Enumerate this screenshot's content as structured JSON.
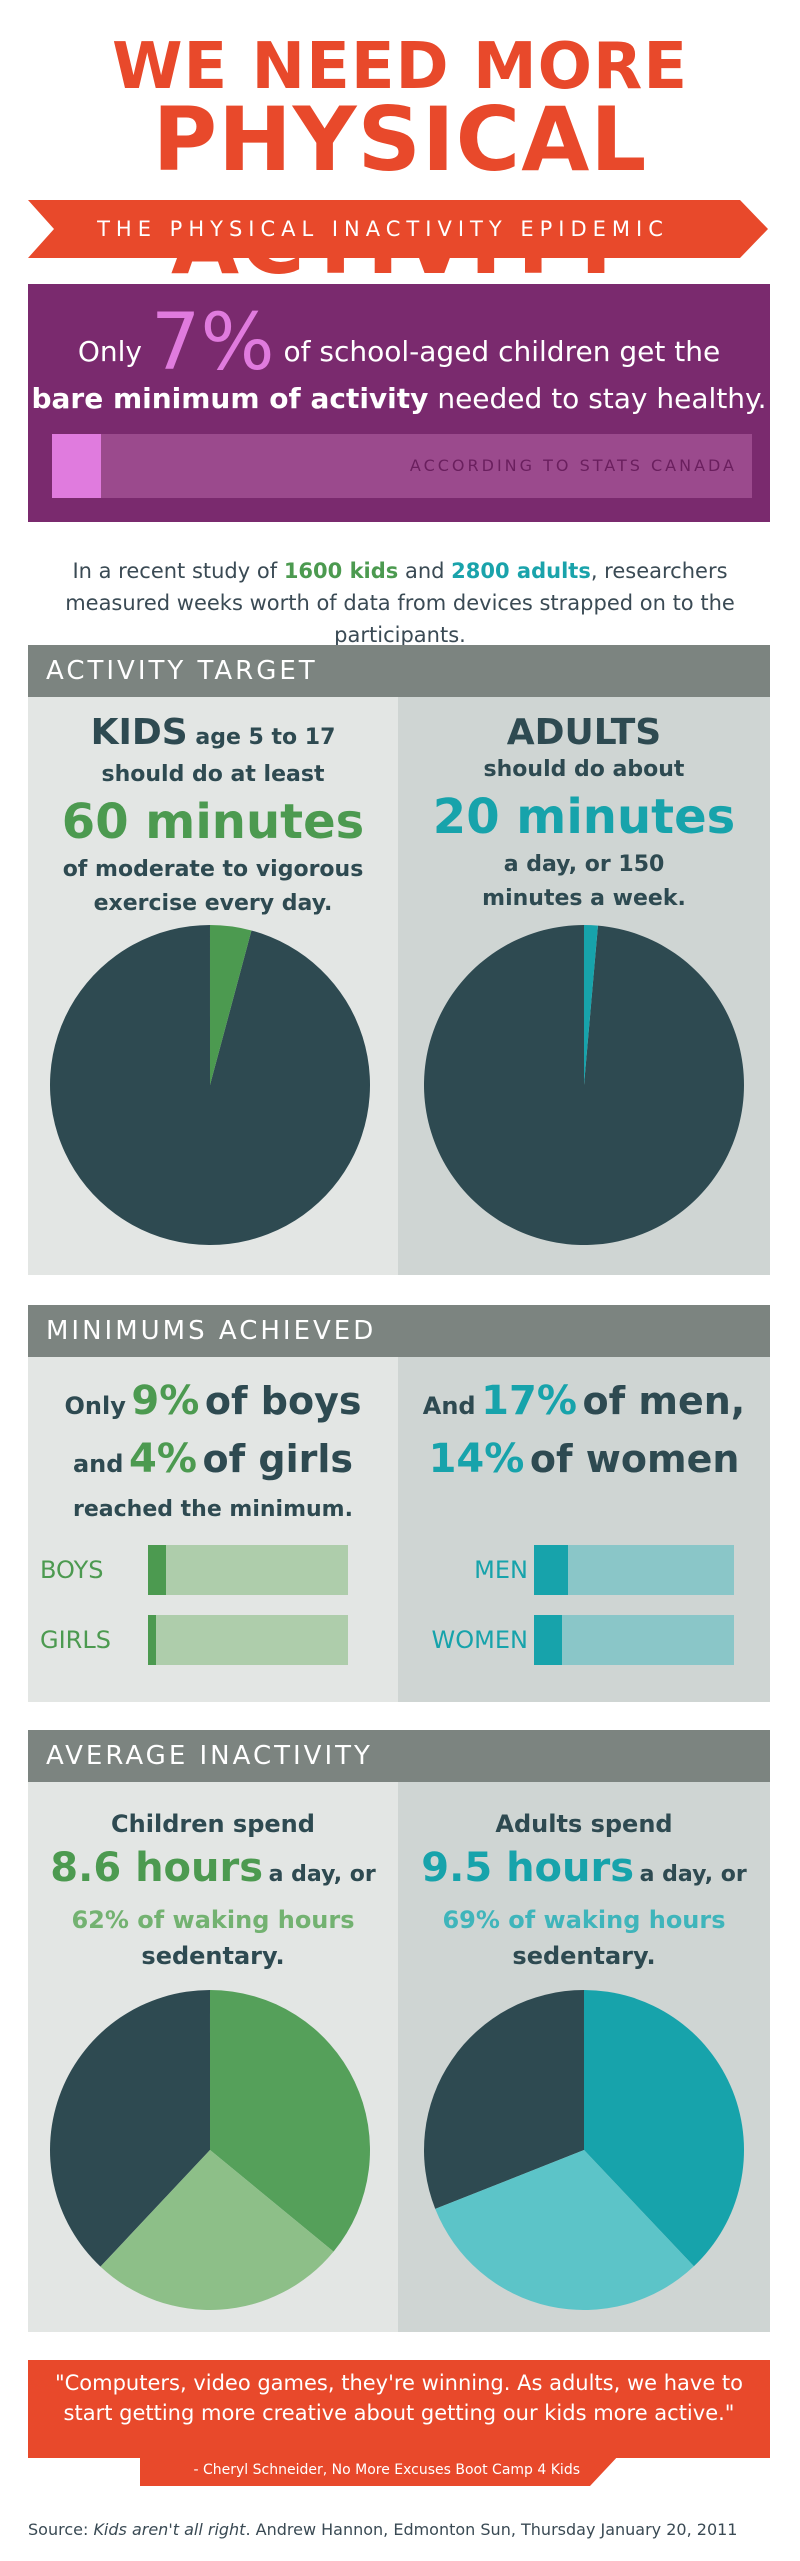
{
  "header": {
    "title_line1": "WE NEED MORE",
    "title_line2": "PHYSICAL ACTIVITY",
    "banner": "THE PHYSICAL INACTIVITY EPIDEMIC"
  },
  "stat_box": {
    "line1_pre": "Only",
    "percent": "7%",
    "line1_post": "of school-aged children get the",
    "line2_bold": "bare minimum of activity",
    "line2_rest": "needed to stay healthy.",
    "bar_fraction": 0.07,
    "source": "ACCORDING TO STATS CANADA"
  },
  "intro": {
    "pre": "In a recent study of",
    "kids": "1600 kids",
    "and": "and",
    "adults": "2800 adults",
    "post": ", researchers measured weeks worth of data from devices strapped on to the participants."
  },
  "activity_target": {
    "heading": "ACTIVITY TARGET",
    "kids": {
      "label": "KIDS",
      "age": "age 5 to 17",
      "line2": "should do at least",
      "hero": "60 minutes",
      "line3": "of moderate to vigorous",
      "line4": "exercise every day.",
      "pie_fraction": 0.0417
    },
    "adults": {
      "label": "ADULTS",
      "line2": "should do about",
      "hero": "20 minutes",
      "line3": "a day, or 150",
      "line4": "minutes a week.",
      "pie_fraction": 0.0139
    }
  },
  "minimums": {
    "heading": "MINIMUMS ACHIEVED",
    "left": {
      "only": "Only",
      "boys_pct": "9%",
      "of_boys": "of boys",
      "and": "and",
      "girls_pct": "4%",
      "of_girls": "of girls",
      "reached": "reached the minimum.",
      "bars": [
        {
          "label": "BOYS",
          "value": 0.09
        },
        {
          "label": "GIRLS",
          "value": 0.04
        }
      ]
    },
    "right": {
      "and": "And",
      "men_pct": "17%",
      "of_men": "of men,",
      "women_pct": "14%",
      "of_women": "of women",
      "bars": [
        {
          "label": "MEN",
          "value": 0.17
        },
        {
          "label": "WOMEN",
          "value": 0.14
        }
      ]
    }
  },
  "inactivity": {
    "heading": "AVERAGE INACTIVITY",
    "children": {
      "line1": "Children spend",
      "hours": "8.6 hours",
      "aday": "a day, or",
      "waking": "62% of waking hours",
      "sedentary": "sedentary.",
      "pie_fraction": 0.62
    },
    "adults": {
      "line1": "Adults spend",
      "hours": "9.5 hours",
      "aday": "a day, or",
      "waking": "69% of waking hours",
      "sedentary": "sedentary.",
      "pie_fraction": 0.69
    }
  },
  "quote": {
    "text": "\"Computers, video games, they're winning. As adults, we have to start getting more creative about getting our kids more active.\"",
    "author": "- Cheryl Schneider, No More Excuses Boot Camp 4 Kids"
  },
  "source": {
    "label": "Source:",
    "title": "Kids aren't all right",
    "rest": ". Andrew Hannon, Edmonton Sun, Thursday January 20, 2011"
  },
  "colors": {
    "red": "#e8492b",
    "purple": "#7a2a6e",
    "pink": "#e07bde",
    "dark": "#2e4a51",
    "green": "#4c9a50",
    "light_green": "#8dbf88",
    "teal": "#17a3ab",
    "light_teal": "#5cc4c8"
  }
}
